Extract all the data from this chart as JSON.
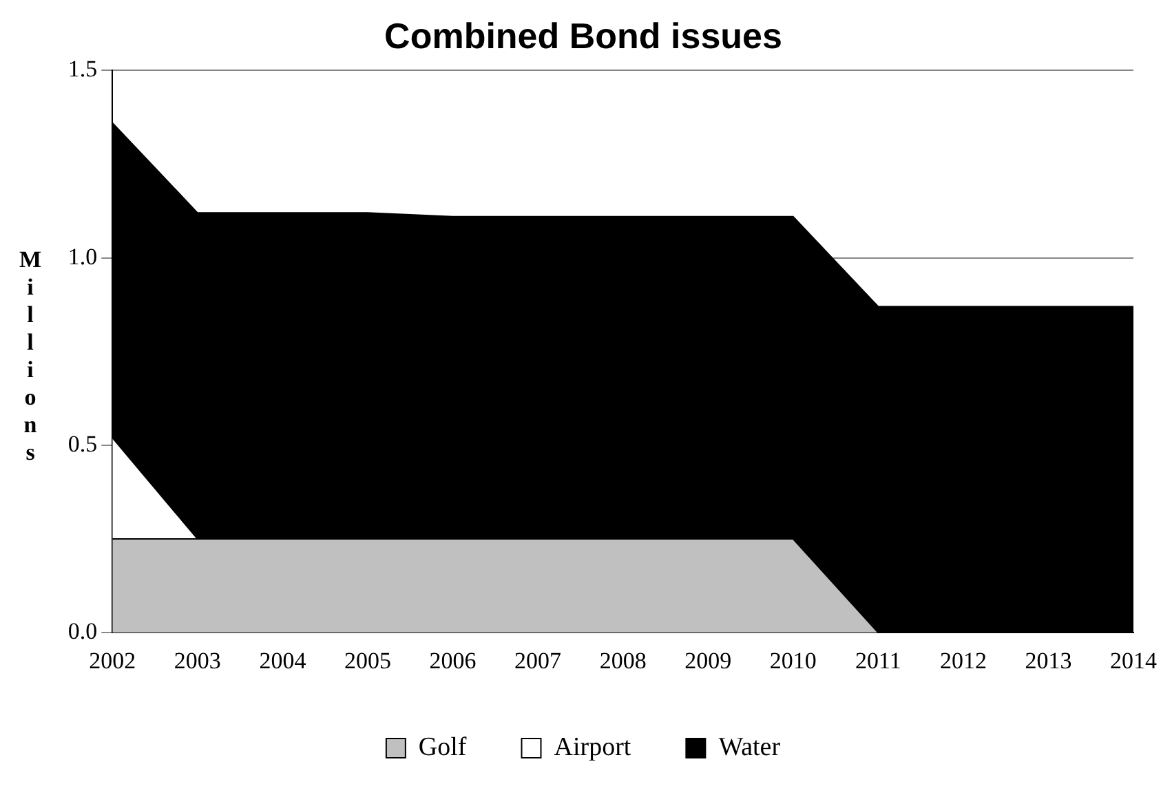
{
  "chart_data": {
    "type": "area",
    "title": "Combined Bond issues",
    "ylabel": "Millions",
    "stacked": true,
    "categories": [
      "2002",
      "2003",
      "2004",
      "2005",
      "2006",
      "2007",
      "2008",
      "2009",
      "2010",
      "2011",
      "2012",
      "2013",
      "2014"
    ],
    "series": [
      {
        "name": "Golf",
        "color": "#c0c0c0",
        "values": [
          0.25,
          0.25,
          0.25,
          0.25,
          0.25,
          0.25,
          0.25,
          0.25,
          0.25,
          0,
          0,
          0,
          0
        ]
      },
      {
        "name": "Airport",
        "color": "#ffffff",
        "values": [
          0.27,
          0,
          0,
          0,
          0,
          0,
          0,
          0,
          0,
          0,
          0,
          0,
          0
        ]
      },
      {
        "name": "Water",
        "color": "#000000",
        "values": [
          0.84,
          0.87,
          0.87,
          0.87,
          0.86,
          0.86,
          0.86,
          0.86,
          0.86,
          0.87,
          0.87,
          0.87,
          0.87
        ]
      }
    ],
    "ylim": [
      0,
      1.5
    ],
    "yticks": [
      {
        "value": 0,
        "label": "0.0"
      },
      {
        "value": 0.5,
        "label": "0.5"
      },
      {
        "value": 1,
        "label": "1.0"
      },
      {
        "value": 1.5,
        "label": "1.5"
      }
    ],
    "grid": "y",
    "legend": "bottom"
  }
}
